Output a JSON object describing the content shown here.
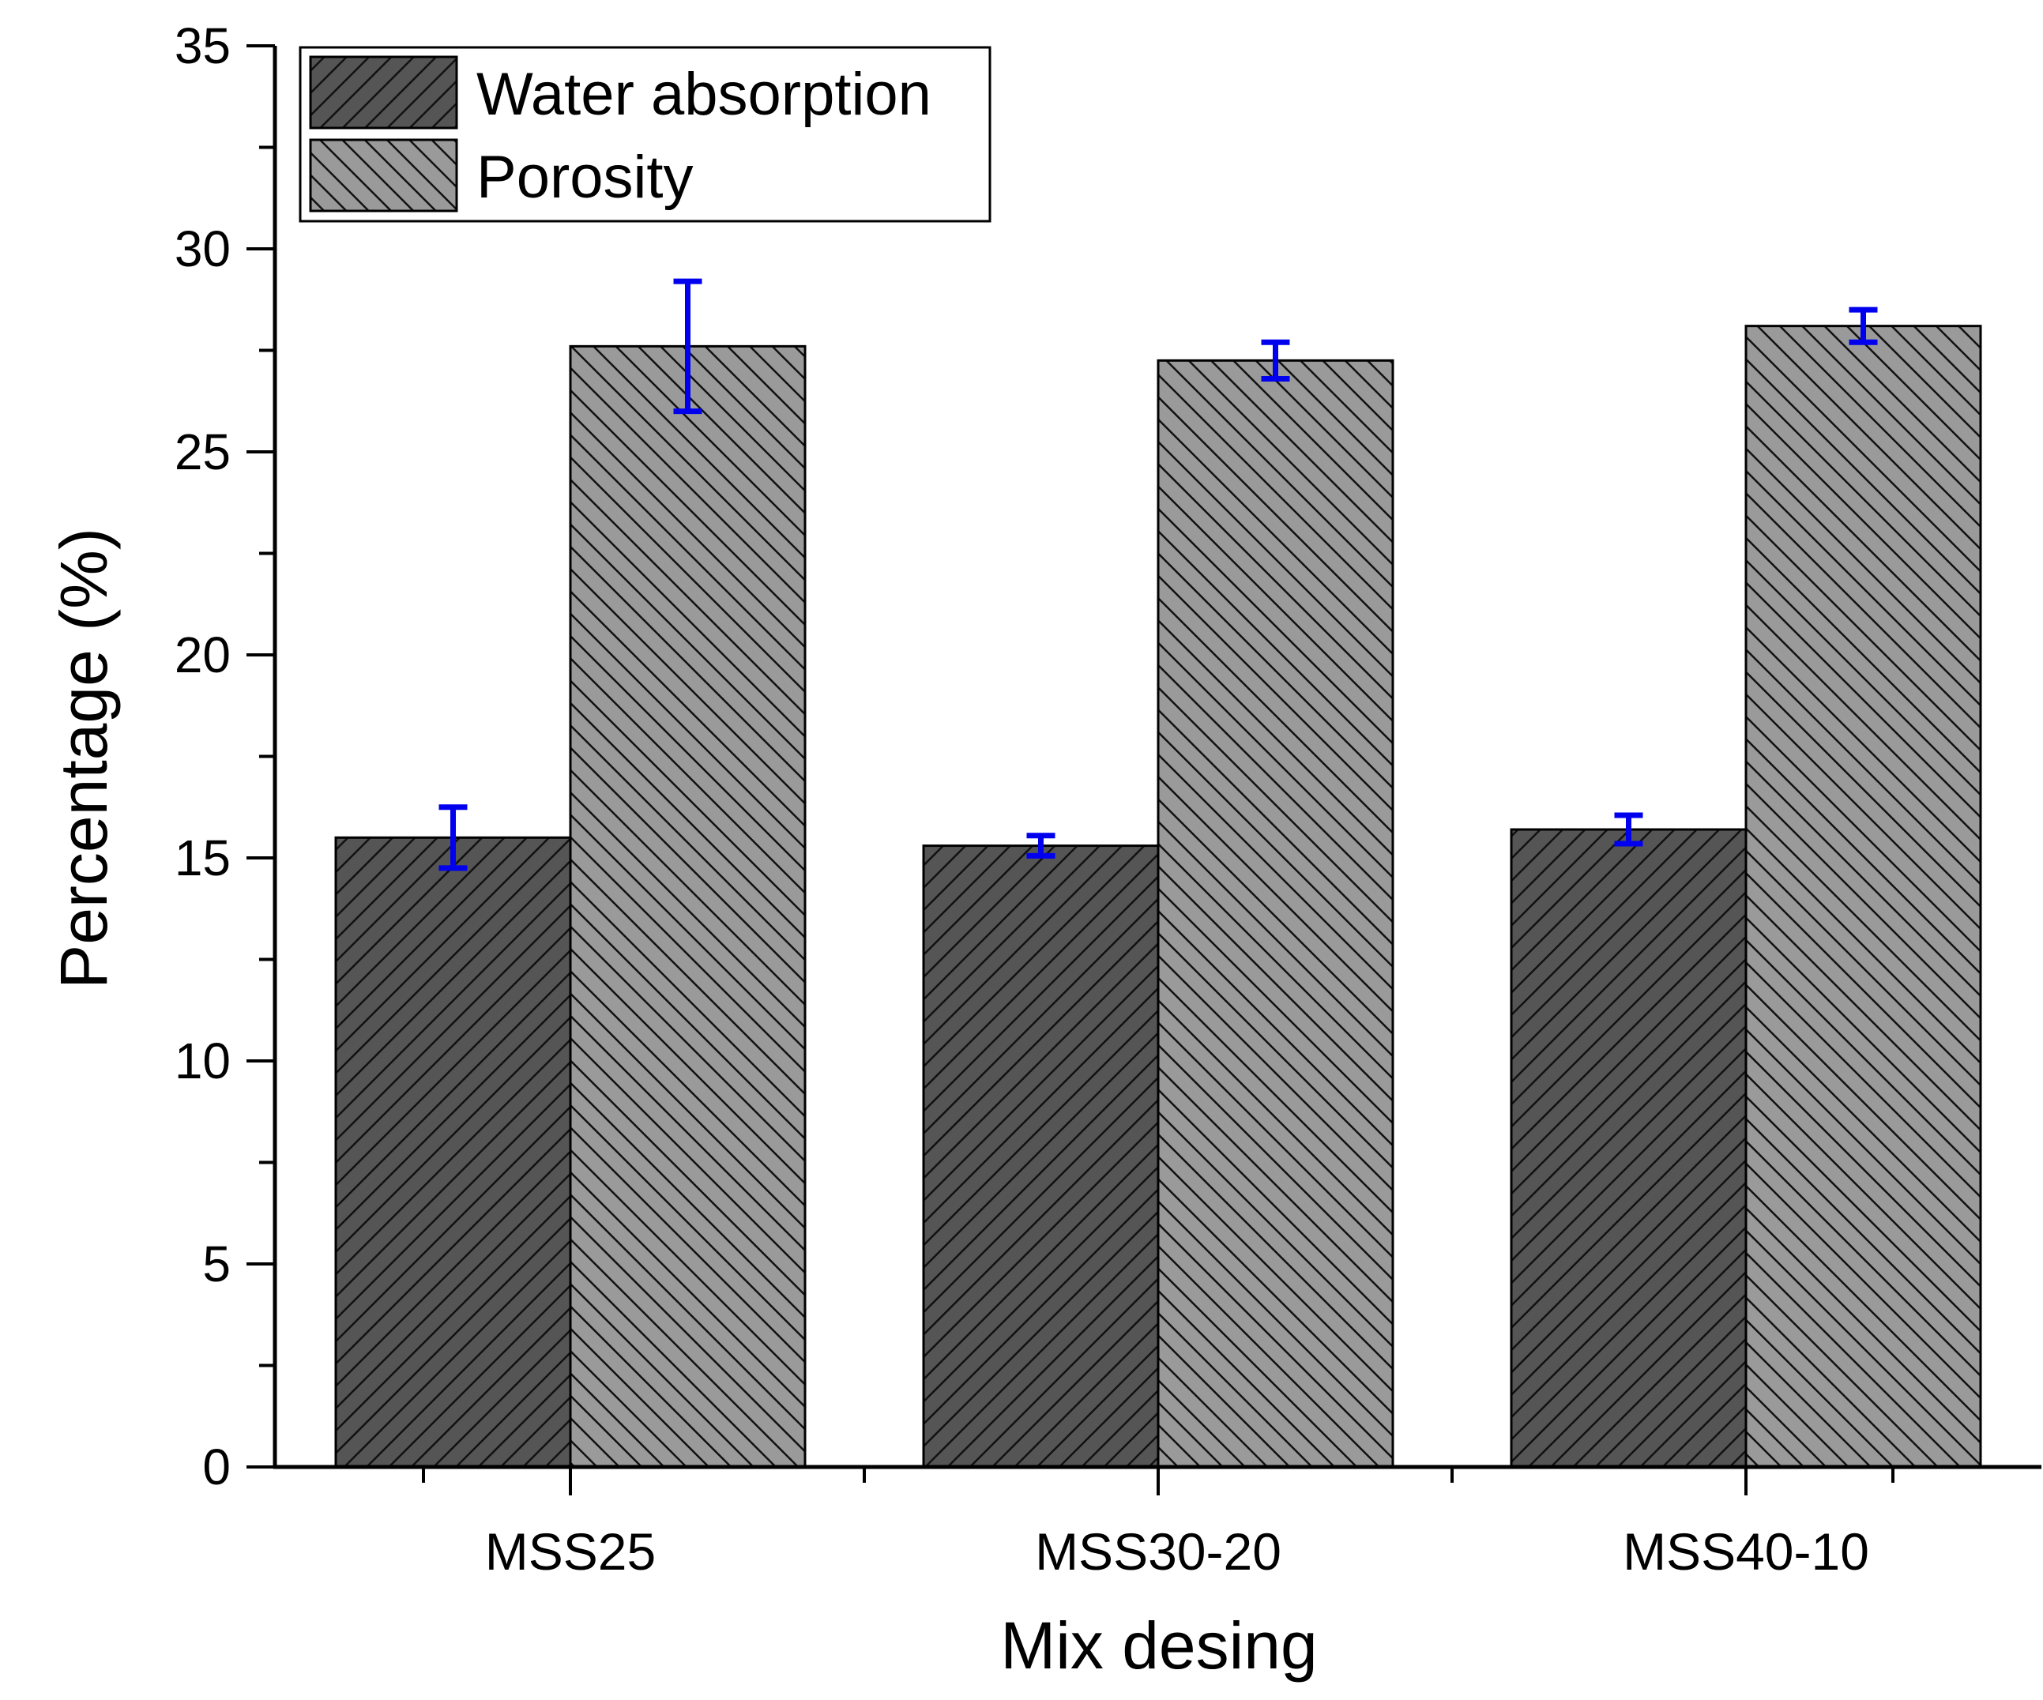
{
  "chart_data": {
    "type": "bar",
    "xlabel": "Mix desing",
    "ylabel": "Percentage (%)",
    "ylim": [
      0,
      35
    ],
    "yticks": [
      0,
      5,
      10,
      15,
      20,
      25,
      30,
      35
    ],
    "ytick_labels": [
      "0",
      "5",
      "10",
      "15",
      "20",
      "25",
      "30",
      "35"
    ],
    "categories": [
      "MSS25",
      "MSS30-20",
      "MSS40-10"
    ],
    "series": [
      {
        "name": "Water absorption",
        "values": [
          15.5,
          15.3,
          15.7
        ],
        "errors": [
          0.75,
          0.25,
          0.35
        ],
        "color": "#555555",
        "hatch": "forward-diagonal"
      },
      {
        "name": "Porosity",
        "values": [
          27.6,
          27.25,
          28.1
        ],
        "errors": [
          1.6,
          0.45,
          0.4
        ],
        "color": "#9a9a9a",
        "hatch": "back-diagonal"
      }
    ],
    "error_bar_color": "#0000ee",
    "legend": {
      "placement": "top-left"
    },
    "grid": false
  }
}
